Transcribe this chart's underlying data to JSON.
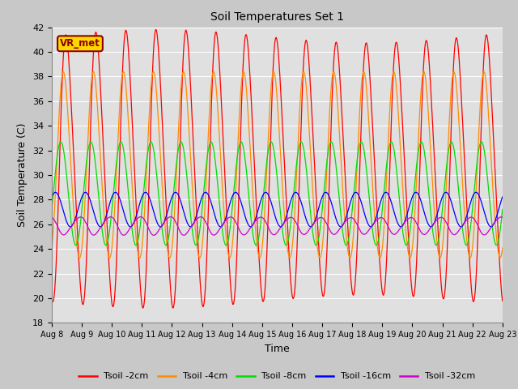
{
  "title": "Soil Temperatures Set 1",
  "xlabel": "Time",
  "ylabel": "Soil Temperature (C)",
  "ylim": [
    18,
    42
  ],
  "annotation_text": "VR_met",
  "annotation_color": "#8B0000",
  "annotation_bg": "#FFD700",
  "x_tick_labels": [
    "Aug 8",
    "Aug 9",
    "Aug 10",
    "Aug 11",
    "Aug 12",
    "Aug 13",
    "Aug 14",
    "Aug 15",
    "Aug 16",
    "Aug 17",
    "Aug 18",
    "Aug 19",
    "Aug 20",
    "Aug 21",
    "Aug 22",
    "Aug 23"
  ],
  "lines": [
    {
      "label": "Tsoil -2cm",
      "color": "#FF0000",
      "amplitude": 10.5,
      "mean": 30.5,
      "phase": 0.0,
      "period": 1.0
    },
    {
      "label": "Tsoil -4cm",
      "color": "#FF8C00",
      "amplitude": 7.5,
      "mean": 30.5,
      "phase": 0.1,
      "period": 1.0
    },
    {
      "label": "Tsoil -8cm",
      "color": "#00DD00",
      "amplitude": 4.2,
      "mean": 28.5,
      "phase": 0.2,
      "period": 1.0
    },
    {
      "label": "Tsoil -16cm",
      "color": "#0000FF",
      "amplitude": 1.4,
      "mean": 27.2,
      "phase": 0.38,
      "period": 1.0
    },
    {
      "label": "Tsoil -32cm",
      "color": "#CC00CC",
      "amplitude": 0.7,
      "mean": 25.9,
      "phase": 0.58,
      "period": 1.0
    }
  ],
  "background_color": "#C8C8C8",
  "axes_bg": "#E0E0E0",
  "grid_color": "#FFFFFF",
  "figsize": [
    6.4,
    4.8
  ],
  "dpi": 100
}
